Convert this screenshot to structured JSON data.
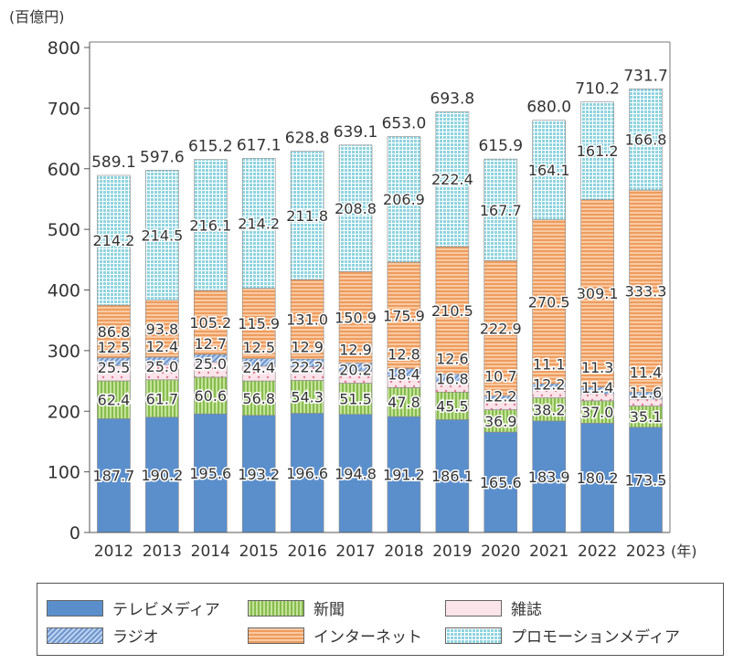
{
  "chart_data": {
    "type": "bar",
    "stacked": true,
    "unit_label": "(百億円)",
    "x_unit_label": "(年)",
    "ylim": [
      0,
      800
    ],
    "yticks": [
      0,
      100,
      200,
      300,
      400,
      500,
      600,
      700,
      800
    ],
    "categories": [
      "2012",
      "2013",
      "2014",
      "2015",
      "2016",
      "2017",
      "2018",
      "2019",
      "2020",
      "2021",
      "2022",
      "2023"
    ],
    "totals": [
      "589.1",
      "597.6",
      "615.2",
      "617.1",
      "628.8",
      "639.1",
      "653.0",
      "693.8",
      "615.9",
      "680.0",
      "710.2",
      "731.7"
    ],
    "series": [
      {
        "name": "テレビメディア",
        "key": "tv",
        "color": "#5b8fcc",
        "values": [
          187.7,
          190.2,
          195.6,
          193.2,
          196.6,
          194.8,
          191.2,
          186.1,
          165.6,
          183.9,
          180.2,
          173.5
        ],
        "labels": [
          "187.7",
          "190.2",
          "195.6",
          "193.2",
          "196.6",
          "194.8",
          "191.2",
          "186.1",
          "165.6",
          "183.9",
          "180.2",
          "173.5"
        ]
      },
      {
        "name": "新聞",
        "key": "newspaper",
        "color": "#a9d276",
        "values": [
          62.4,
          61.7,
          60.6,
          56.8,
          54.3,
          51.5,
          47.8,
          45.5,
          36.9,
          38.2,
          37.0,
          35.1
        ],
        "labels": [
          "62.4",
          "61.7",
          "60.6",
          "56.8",
          "54.3",
          "51.5",
          "47.8",
          "45.5",
          "36.9",
          "38.2",
          "37.0",
          "35.1"
        ]
      },
      {
        "name": "雑誌",
        "key": "magazine",
        "color": "#f6c6d2",
        "values": [
          25.5,
          25.0,
          25.0,
          24.4,
          22.2,
          20.2,
          18.4,
          16.8,
          12.2,
          12.2,
          11.4,
          11.6
        ],
        "labels": [
          "25.5",
          "25.0",
          "25.0",
          "24.4",
          "22.2",
          "20.2",
          "18.4",
          "16.8",
          "12.2",
          "12.2",
          "11.4",
          "11.6"
        ]
      },
      {
        "name": "ラジオ",
        "key": "radio",
        "color": "#8fb0dd",
        "values": [
          12.5,
          12.4,
          12.7,
          12.5,
          12.9,
          12.9,
          12.8,
          12.6,
          10.7,
          11.1,
          11.3,
          11.4
        ],
        "labels": [
          "12.5",
          "12.4",
          "12.7",
          "12.5",
          "12.9",
          "12.9",
          "12.8",
          "12.6",
          "10.7",
          "11.1",
          "11.3",
          "11.4"
        ]
      },
      {
        "name": "インターネット",
        "key": "internet",
        "color": "#f4b383",
        "values": [
          86.8,
          93.8,
          105.2,
          115.9,
          131.0,
          150.9,
          175.9,
          210.5,
          222.9,
          270.5,
          309.1,
          333.3
        ],
        "labels": [
          "86.8",
          "93.8",
          "105.2",
          "115.9",
          "131.0",
          "150.9",
          "175.9",
          "210.5",
          "222.9",
          "270.5",
          "309.1",
          "333.3"
        ]
      },
      {
        "name": "プロモーションメディア",
        "key": "promo",
        "color": "#8fd4e0",
        "values": [
          214.2,
          214.5,
          216.1,
          214.2,
          211.8,
          208.8,
          206.9,
          222.4,
          167.7,
          164.1,
          161.2,
          166.8
        ],
        "labels": [
          "214.2",
          "214.5",
          "216.1",
          "214.2",
          "211.8",
          "208.8",
          "206.9",
          "222.4",
          "167.7",
          "164.1",
          "161.2",
          "166.8"
        ]
      }
    ],
    "legend_position": "bottom",
    "grid": false
  },
  "legend": {
    "tv": "テレビメディア",
    "newspaper": "新聞",
    "magazine": "雑誌",
    "radio": "ラジオ",
    "internet": "インターネット",
    "promo": "プロモーションメディア"
  }
}
